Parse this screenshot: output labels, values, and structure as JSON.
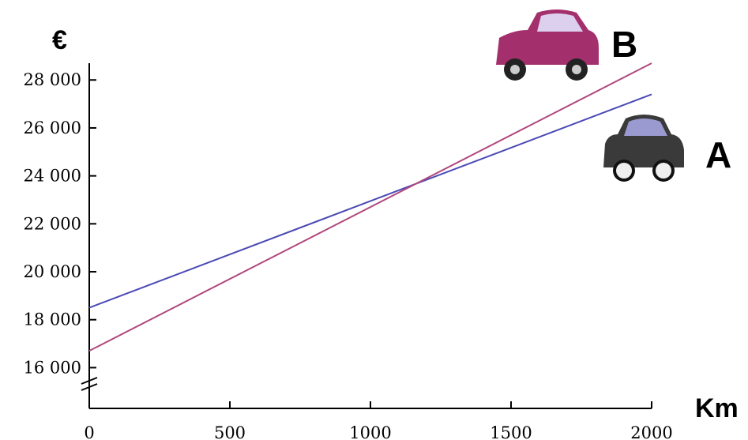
{
  "chart_data": {
    "type": "line",
    "y_label": "€",
    "x_label": "Km",
    "x": [
      0,
      2000
    ],
    "series": [
      {
        "name": "A",
        "color": "#4a4ab4",
        "values": [
          18500,
          27400
        ]
      },
      {
        "name": "B",
        "color": "#b0487e",
        "values": [
          16700,
          28700
        ]
      }
    ],
    "xlim": [
      0,
      2000
    ],
    "xticks": [
      0,
      500,
      1000,
      1500,
      2000
    ],
    "ylim": [
      14300,
      28700
    ],
    "yticks": [
      {
        "value": 16000,
        "label": "16 000"
      },
      {
        "value": 18000,
        "label": "18 000"
      },
      {
        "value": 20000,
        "label": "20 000"
      },
      {
        "value": 22000,
        "label": "22 000"
      },
      {
        "value": 24000,
        "label": "24 000"
      },
      {
        "value": 26000,
        "label": "26 000"
      },
      {
        "value": 28000,
        "label": "28 000"
      }
    ],
    "grid": false
  }
}
